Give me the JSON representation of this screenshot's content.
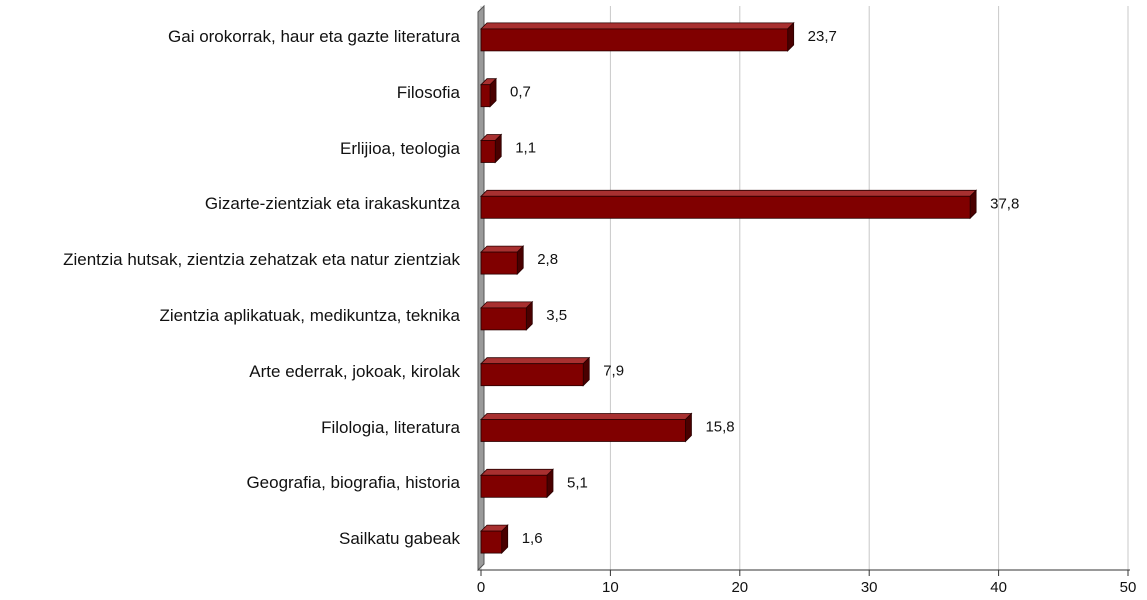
{
  "chart_data": {
    "type": "bar",
    "orientation": "horizontal",
    "categories": [
      "Gai orokorrak, haur eta gazte literatura",
      "Filosofia",
      "Erlijioa, teologia",
      "Gizarte-zientziak eta irakaskuntza",
      "Zientzia hutsak, zientzia zehatzak eta natur zientziak",
      "Zientzia aplikatuak, medikuntza, teknika",
      "Arte ederrak, jokoak, kirolak",
      "Filologia, literatura",
      "Geografia, biografia, historia",
      "Sailkatu gabeak"
    ],
    "values": [
      23.7,
      0.7,
      1.1,
      37.8,
      2.8,
      3.5,
      7.9,
      15.8,
      5.1,
      1.6
    ],
    "value_labels": [
      "23,7",
      "0,7",
      "1,1",
      "37,8",
      "2,8",
      "3,5",
      "7,9",
      "15,8",
      "5,1",
      "1,6"
    ],
    "color": "#800000",
    "xlim": [
      0,
      50
    ],
    "xticks": [
      0,
      10,
      20,
      30,
      40,
      50
    ],
    "grid": true
  }
}
